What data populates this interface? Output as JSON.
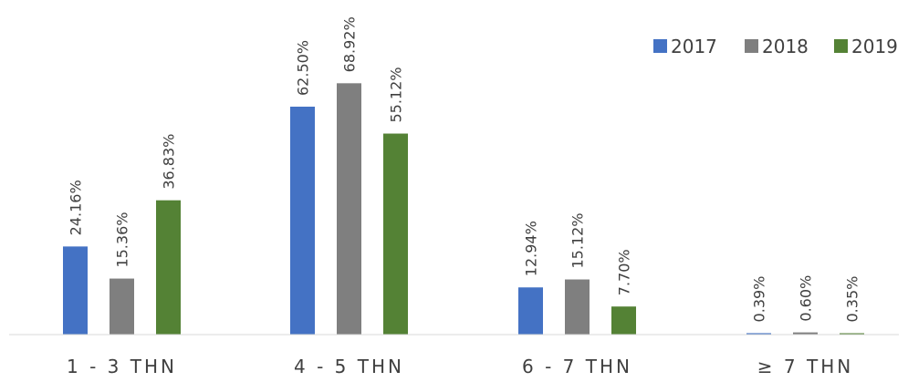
{
  "chart_data": {
    "type": "bar",
    "categories": [
      "1 - 3 THN",
      "4 - 5 THN",
      "6 - 7 THN",
      "≥ 7 THN"
    ],
    "series": [
      {
        "name": "2017",
        "color": "#4472C4",
        "values": [
          24.16,
          62.5,
          12.94,
          0.39
        ],
        "labels": [
          "24.16%",
          "62.50%",
          "12.94%",
          "0.39%"
        ]
      },
      {
        "name": "2018",
        "color": "#7F7F7F",
        "values": [
          15.36,
          68.92,
          15.12,
          0.6
        ],
        "labels": [
          "15.36%",
          "68.92%",
          "15.12%",
          "0.60%"
        ]
      },
      {
        "name": "2019",
        "color": "#548235",
        "values": [
          36.83,
          55.12,
          7.7,
          0.35
        ],
        "labels": [
          "36.83%",
          "55.12%",
          "7.70%",
          "0.35%"
        ]
      }
    ],
    "title": "",
    "xlabel": "",
    "ylabel": "",
    "legend": "top-right",
    "grid": false
  }
}
